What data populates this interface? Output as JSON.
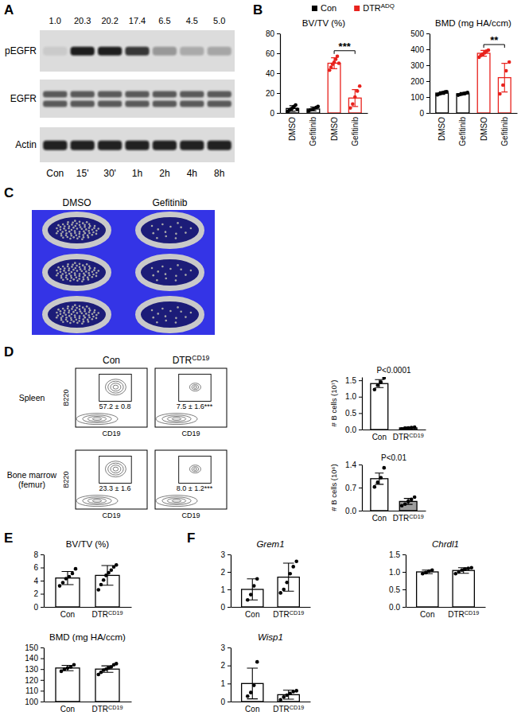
{
  "chart_data": [
    {
      "type": "blot",
      "panel": "A",
      "categories": [
        "Con",
        "15'",
        "30'",
        "1h",
        "2h",
        "4h",
        "8h"
      ],
      "rows": [
        "pEGFR",
        "EGFR",
        "Actin"
      ],
      "values": [
        1.0,
        20.3,
        20.2,
        17.4,
        6.5,
        4.5,
        5.0
      ],
      "value_labels": [
        "1.0",
        "20.3",
        "20.2",
        "17.4",
        "6.5",
        "4.5",
        "5.0"
      ],
      "data_labels": true
    },
    {
      "type": "bar",
      "panel": "B",
      "legend": "top",
      "series": [
        {
          "name": "Con",
          "color": "#000000"
        },
        {
          "name": {
            "text": "DTR",
            "sup": "ADQ"
          },
          "color": "#e8221d"
        }
      ],
      "subplots": [
        {
          "title": "BV/TV (%)",
          "categories": [
            "DMSO",
            "Gefitinib"
          ],
          "ylim": [
            0,
            80
          ],
          "yticks": [
            0,
            20,
            40,
            60,
            80
          ],
          "series": [
            {
              "values": [
                4.5,
                4.0
              ],
              "errors": [
                2.8,
                2.0
              ],
              "points": [
                [
                  1.5,
                  3,
                  4,
                  5,
                  6.5,
                  8,
                  3.5
                ],
                [
                  2,
                  3,
                  3.5,
                  4.5,
                  5.5,
                  6.5
                ]
              ]
            },
            {
              "values": [
                50,
                15
              ],
              "errors": [
                5.5,
                8.5
              ],
              "points": [
                [
                  43,
                  46,
                  49,
                  51,
                  54,
                  57,
                  50
                ],
                [
                  5,
                  9,
                  16,
                  22,
                  27
                ]
              ]
            }
          ],
          "significance": "***"
        },
        {
          "title": "BMD (mg HA/ccm)",
          "categories": [
            "DMSO",
            "Gefitinib"
          ],
          "ylim": [
            0,
            500
          ],
          "yticks": [
            0,
            100,
            200,
            300,
            400,
            500
          ],
          "series": [
            {
              "values": [
                125,
                121
              ],
              "errors": [
                8,
                7
              ],
              "points": [
                [
                  114,
                  119,
                  122,
                  126,
                  129,
                  132,
                  133
                ],
                [
                  112,
                  116,
                  119,
                  122,
                  125,
                  128
                ]
              ]
            },
            {
              "values": [
                375,
                222
              ],
              "errors": [
                18,
                90
              ],
              "points": [
                [
                  350,
                  362,
                  370,
                  378,
                  388,
                  395
                ],
                [
                  120,
                  175,
                  265,
                  320
                ]
              ]
            }
          ],
          "significance": "**"
        }
      ]
    },
    {
      "type": "image",
      "panel": "C",
      "columns": [
        "DMSO",
        "Gefitinib"
      ]
    },
    {
      "type": "flow",
      "panel": "D",
      "columns": [
        "Con",
        {
          "text": "DTR",
          "sup": "CD19"
        }
      ],
      "xlabel": "CD19",
      "ylabel": "B220",
      "rows": [
        {
          "name": [
            "Spleen"
          ],
          "gates": [
            "57.2 ± 0.8",
            "7.5 ± 1.6***"
          ]
        },
        {
          "name": [
            "Bone marrow",
            "(femur)"
          ],
          "gates": [
            "23.3 ± 1.6",
            "8.0 ± 1.2***"
          ]
        }
      ]
    },
    {
      "type": "bar",
      "series": [
        {
          "color": "#000000",
          "colors": [
            "#ffffff",
            "#9e9e9e"
          ]
        }
      ],
      "subplots": [
        {
          "ylabel": "# B cells (10⁷)",
          "categories": [
            "Con",
            {
              "text": "DTR",
              "sup": "CD19"
            }
          ],
          "ylim": [
            0,
            1.6
          ],
          "yticks": [
            {
              "value": 0,
              "label": "0.0"
            },
            {
              "value": 0.5,
              "label": "0.5"
            },
            {
              "value": 1,
              "label": "1.0"
            },
            {
              "value": 1.5,
              "label": "1.5"
            }
          ],
          "series": [
            {
              "values": [
                1.4,
                0.05
              ],
              "errors": [
                0.12,
                0.02
              ],
              "points": [
                [
                  1.22,
                  1.35,
                  1.45,
                  1.57
                ],
                [
                  0.02,
                  0.04,
                  0.05,
                  0.06,
                  0.07
                ]
              ]
            }
          ],
          "annotation": "P<0.0001"
        },
        {
          "ylabel": "# B cells (10⁶)",
          "categories": [
            "Con",
            {
              "text": "DTR",
              "sup": "CD19"
            }
          ],
          "ylim": [
            0,
            1.4
          ],
          "yticks": [
            {
              "value": 0,
              "label": "0.0"
            },
            {
              "value": 0.7,
              "label": "0.7"
            },
            {
              "value": 1.4,
              "label": "1.4"
            }
          ],
          "series": [
            {
              "values": [
                0.97,
                0.28
              ],
              "errors": [
                0.17,
                0.09
              ],
              "points": [
                [
                  0.72,
                  0.86,
                  1.0,
                  1.3
                ],
                [
                  0.15,
                  0.2,
                  0.28,
                  0.34,
                  0.41
                ]
              ]
            }
          ],
          "annotation": "P<0.01"
        }
      ]
    },
    {
      "type": "bar",
      "panel": "E",
      "series": [
        {
          "color": "#000000",
          "colors": [
            "#ffffff",
            "#ffffff"
          ]
        }
      ],
      "subplots": [
        {
          "title": "BV/TV (%)",
          "categories": [
            "Con",
            {
              "text": "DTR",
              "sup": "CD19"
            }
          ],
          "ylim": [
            0,
            8
          ],
          "yticks": [
            0,
            2,
            4,
            6,
            8
          ],
          "series": [
            {
              "values": [
                4.4,
                4.8
              ],
              "errors": [
                1.0,
                1.5
              ],
              "points": [
                [
                  3.2,
                  3.7,
                  4.3,
                  4.6,
                  5.1,
                  5.8
                ],
                [
                  2.6,
                  3.4,
                  4.1,
                  4.8,
                  5.2,
                  5.6,
                  6.1,
                  6.4
                ]
              ]
            }
          ]
        },
        {
          "title": "BMD (mg HA/ccm)",
          "categories": [
            "Con",
            {
              "text": "DTR",
              "sup": "CD19"
            }
          ],
          "ylim": [
            100,
            150
          ],
          "yticks": [
            100,
            110,
            120,
            130,
            140,
            150
          ],
          "series": [
            {
              "values": [
                131,
                130
              ],
              "errors": [
                2.5,
                3
              ],
              "points": [
                [
                  128,
                  130,
                  131,
                  132,
                  134
                ],
                [
                  125,
                  127,
                  129,
                  130,
                  131,
                  132,
                  134,
                  135
                ]
              ]
            }
          ]
        }
      ]
    },
    {
      "type": "bar",
      "panel": "F",
      "series": [
        {
          "color": "#000000",
          "colors": [
            "#ffffff",
            "#ffffff"
          ]
        }
      ],
      "subplots": [
        {
          "title": "Grem1",
          "categories": [
            "Con",
            {
              "text": "DTR",
              "sup": "CD19"
            }
          ],
          "ylim": [
            0,
            3
          ],
          "yticks": [
            0,
            1,
            2,
            3
          ],
          "series": [
            {
              "values": [
                1.0,
                1.7
              ],
              "errors": [
                0.6,
                0.8
              ],
              "points": [
                [
                  0.4,
                  0.7,
                  1.2,
                  1.6
                ],
                [
                  0.8,
                  1.0,
                  1.4,
                  1.9,
                  2.3,
                  2.6
                ]
              ]
            }
          ]
        },
        {
          "title": "Chrdl1",
          "categories": [
            "Con",
            {
              "text": "DTR",
              "sup": "CD19"
            }
          ],
          "ylim": [
            0,
            1.5
          ],
          "yticks": [
            {
              "value": 0,
              "label": "0.0"
            },
            {
              "value": 0.5,
              "label": "0.5"
            },
            {
              "value": 1,
              "label": "1.0"
            },
            {
              "value": 1.5,
              "label": "1.5"
            }
          ],
          "series": [
            {
              "values": [
                1.0,
                1.04
              ],
              "errors": [
                0.05,
                0.08
              ],
              "points": [
                [
                  0.95,
                  0.98,
                  1.02,
                  1.05
                ],
                [
                  0.95,
                  1.0,
                  1.05,
                  1.08,
                  1.1,
                  1.12
                ]
              ]
            }
          ]
        },
        {
          "title": "Wisp1",
          "categories": [
            "Con",
            {
              "text": "DTR",
              "sup": "CD19"
            }
          ],
          "ylim": [
            0,
            3
          ],
          "yticks": [
            0,
            1,
            2,
            3
          ],
          "series": [
            {
              "values": [
                1.0,
                0.38
              ],
              "errors": [
                0.85,
                0.25
              ],
              "points": [
                [
                  0.3,
                  0.5,
                  0.9,
                  2.2
                ],
                [
                  0.1,
                  0.25,
                  0.35,
                  0.45,
                  0.55,
                  0.6
                ]
              ]
            }
          ]
        }
      ]
    }
  ]
}
